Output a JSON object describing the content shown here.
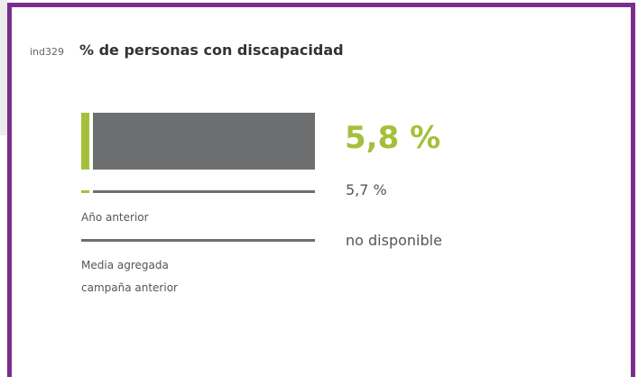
{
  "indicator": {
    "id": "ind329",
    "title": "% de personas con discapacidad",
    "value": "5,8 %",
    "previous_year": {
      "label": "Año anterior",
      "value": "5,7 %"
    },
    "aggregate": {
      "label_lines": [
        "Media agregada",
        "campaña anterior"
      ],
      "value": "no disponible"
    }
  }
}
